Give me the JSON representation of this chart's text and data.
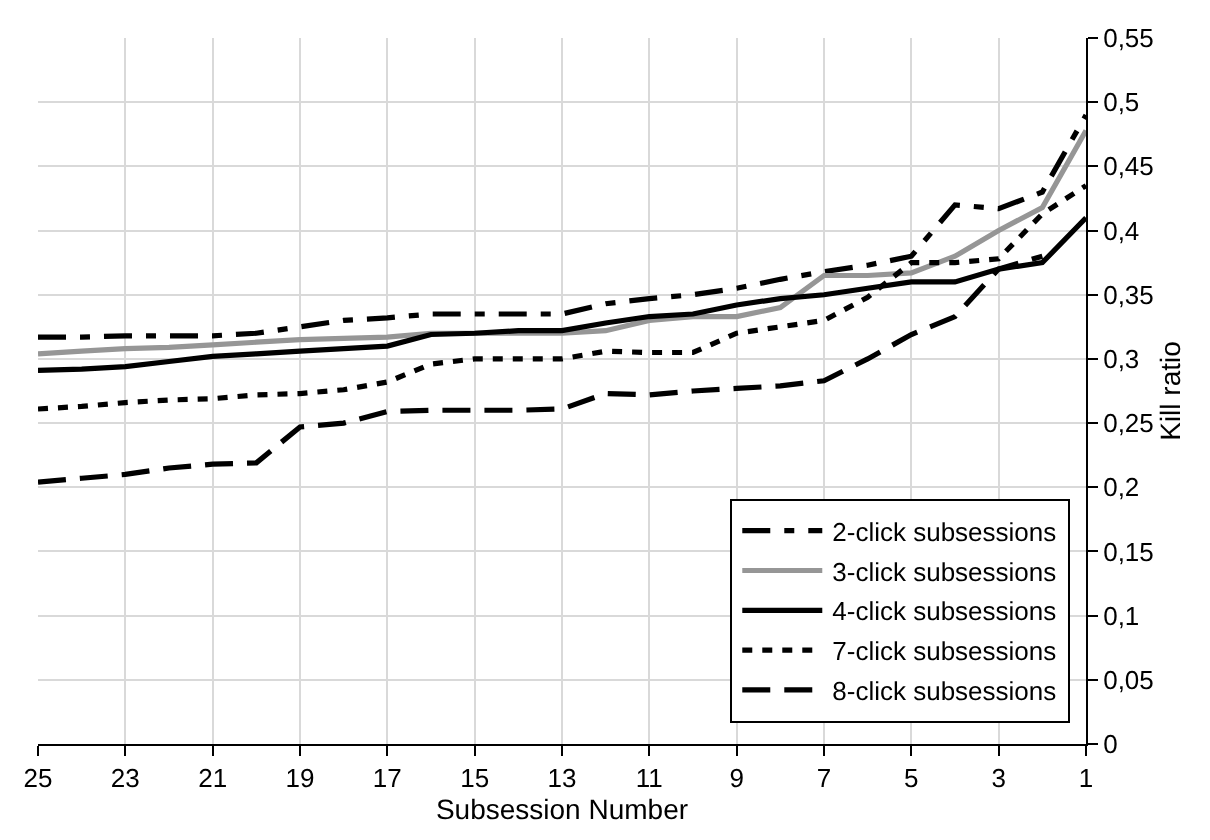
{
  "chart_data": {
    "type": "line",
    "xlabel": "Subsession Number",
    "ylabel": "Kill ratio",
    "x": [
      25,
      24,
      23,
      22,
      21,
      20,
      19,
      18,
      17,
      16,
      15,
      14,
      13,
      12,
      11,
      10,
      9,
      8,
      7,
      6,
      5,
      4,
      3,
      2,
      1
    ],
    "series": [
      {
        "name": "2-click subsessions",
        "color": "#000000",
        "line_style": "dashdot",
        "values": [
          0.317,
          0.317,
          0.318,
          0.318,
          0.318,
          0.32,
          0.325,
          0.33,
          0.332,
          0.335,
          0.335,
          0.335,
          0.335,
          0.343,
          0.347,
          0.35,
          0.355,
          0.362,
          0.368,
          0.373,
          0.38,
          0.42,
          0.417,
          0.43,
          0.49
        ]
      },
      {
        "name": "3-click subsessions",
        "color": "#969696",
        "line_style": "solid",
        "values": [
          0.304,
          0.306,
          0.308,
          0.309,
          0.311,
          0.313,
          0.315,
          0.316,
          0.317,
          0.32,
          0.32,
          0.32,
          0.32,
          0.322,
          0.33,
          0.333,
          0.333,
          0.34,
          0.365,
          0.365,
          0.367,
          0.38,
          0.4,
          0.418,
          0.478
        ]
      },
      {
        "name": "4-click subsessions",
        "color": "#000000",
        "line_style": "solid",
        "values": [
          0.291,
          0.292,
          0.294,
          0.298,
          0.302,
          0.304,
          0.306,
          0.308,
          0.31,
          0.319,
          0.32,
          0.322,
          0.322,
          0.328,
          0.333,
          0.335,
          0.342,
          0.347,
          0.35,
          0.355,
          0.36,
          0.36,
          0.37,
          0.375,
          0.41
        ]
      },
      {
        "name": "7-click subsessions",
        "color": "#000000",
        "line_style": "dotted",
        "values": [
          0.261,
          0.263,
          0.266,
          0.268,
          0.269,
          0.272,
          0.273,
          0.276,
          0.282,
          0.296,
          0.3,
          0.3,
          0.3,
          0.306,
          0.305,
          0.305,
          0.32,
          0.325,
          0.33,
          0.348,
          0.375,
          0.375,
          0.378,
          0.413,
          0.435
        ]
      },
      {
        "name": "8-click subsessions",
        "color": "#000000",
        "line_style": "dashed",
        "values": [
          0.204,
          0.207,
          0.21,
          0.215,
          0.218,
          0.219,
          0.247,
          0.25,
          0.259,
          0.26,
          0.26,
          0.26,
          0.261,
          0.273,
          0.272,
          0.275,
          0.277,
          0.279,
          0.283,
          0.3,
          0.319,
          0.333,
          0.37,
          0.38,
          null
        ]
      }
    ],
    "xlim": [
      25,
      1
    ],
    "xticks": [
      25,
      23,
      21,
      19,
      17,
      15,
      13,
      11,
      9,
      7,
      5,
      3,
      1
    ],
    "ylim": [
      0,
      0.55
    ],
    "yticks": [
      {
        "value": 0,
        "label": "0"
      },
      {
        "value": 0.05,
        "label": "0,05"
      },
      {
        "value": 0.1,
        "label": "0,1"
      },
      {
        "value": 0.15,
        "label": "0,15"
      },
      {
        "value": 0.2,
        "label": "0,2"
      },
      {
        "value": 0.25,
        "label": "0,25"
      },
      {
        "value": 0.3,
        "label": "0,3"
      },
      {
        "value": 0.35,
        "label": "0,35"
      },
      {
        "value": 0.4,
        "label": "0,4"
      },
      {
        "value": 0.45,
        "label": "0,45"
      },
      {
        "value": 0.5,
        "label": "0,5"
      },
      {
        "value": 0.55,
        "label": "0,55"
      }
    ],
    "grid": true,
    "legend": "bottom right",
    "marker": "none"
  }
}
